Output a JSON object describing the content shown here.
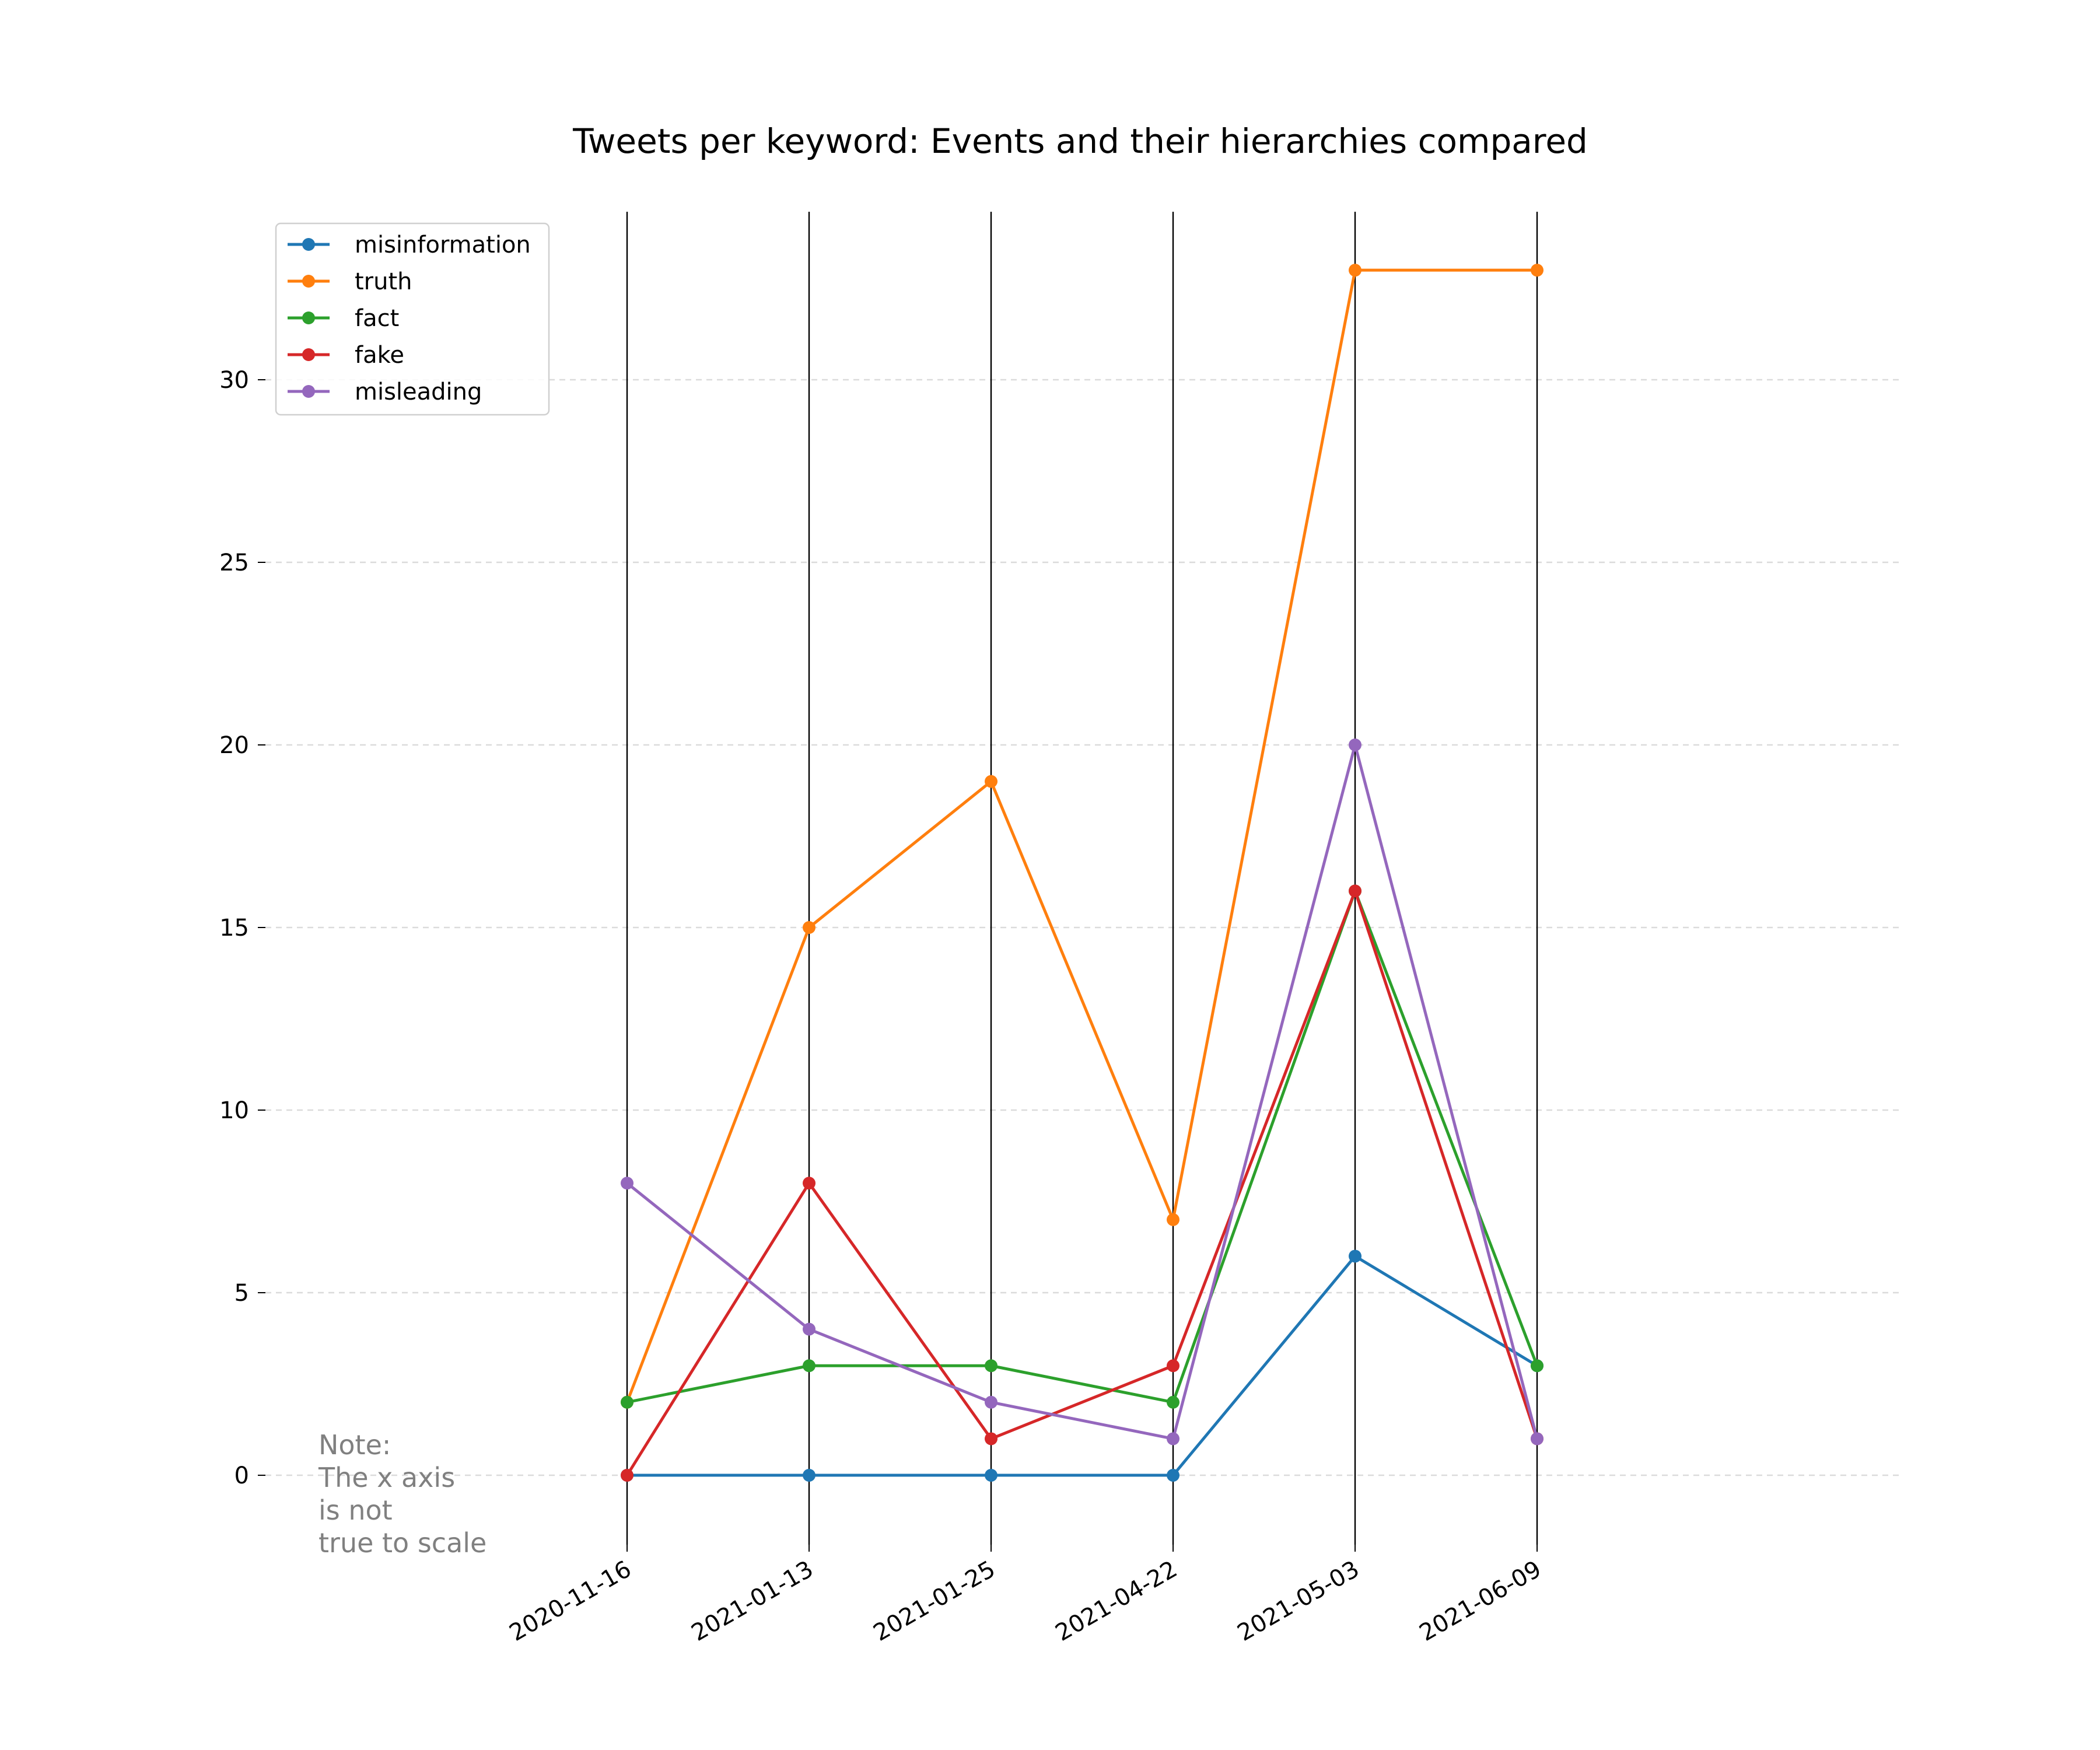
{
  "chart_data": {
    "type": "line",
    "title": "Tweets per keyword: Events and their hierarchies compared",
    "xlabel": "",
    "ylabel": "",
    "categories": [
      "2020-11-16",
      "2021-01-13",
      "2021-01-25",
      "2021-04-22",
      "2021-05-03",
      "2021-06-09"
    ],
    "yticks": [
      0,
      5,
      10,
      15,
      20,
      25,
      30
    ],
    "ylim": [
      -1.9,
      34.6
    ],
    "grid": "horizontal dashed",
    "event_lines": true,
    "legend_position": "upper-left",
    "series": [
      {
        "name": "misinformation",
        "color": "#1f77b4",
        "values": [
          0,
          0,
          0,
          0,
          6,
          3
        ]
      },
      {
        "name": "truth",
        "color": "#ff7f0e",
        "values": [
          2,
          15,
          19,
          7,
          33,
          33
        ]
      },
      {
        "name": "fact",
        "color": "#2ca02c",
        "values": [
          2,
          3,
          3,
          2,
          16,
          3
        ]
      },
      {
        "name": "fake",
        "color": "#d62728",
        "values": [
          0,
          8,
          1,
          3,
          16,
          1
        ]
      },
      {
        "name": "misleading",
        "color": "#9467bd",
        "values": [
          8,
          4,
          2,
          1,
          20,
          1
        ]
      }
    ],
    "annotation": [
      "Note:",
      "The x axis",
      "is not",
      "true to scale"
    ]
  }
}
